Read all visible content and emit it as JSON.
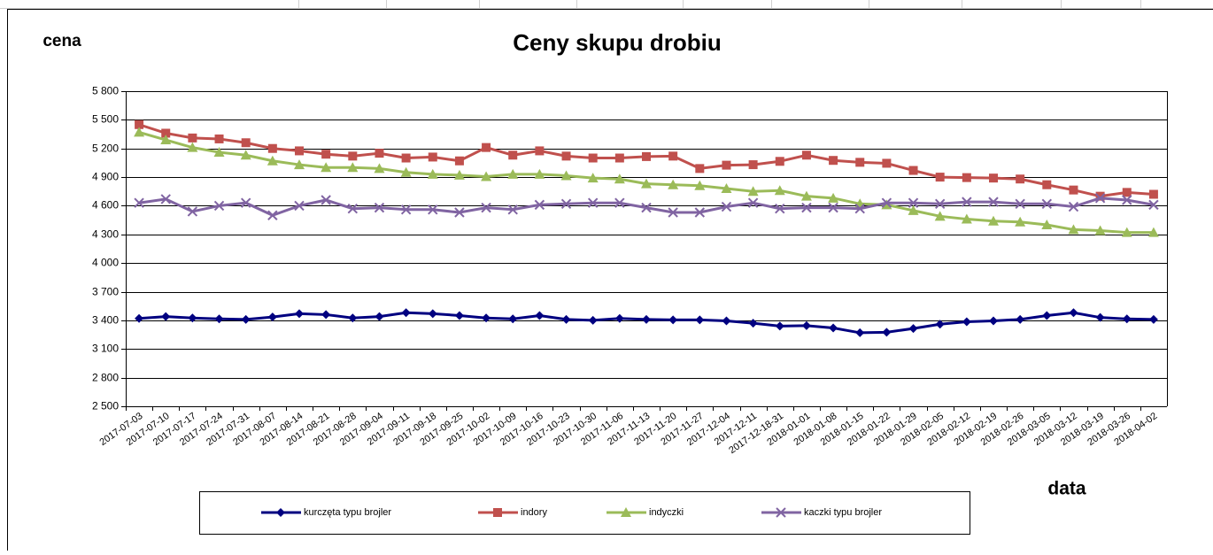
{
  "chart_data": {
    "type": "line",
    "title": "Ceny skupu drobiu",
    "y_label": "cena",
    "x_label": "data",
    "categories": [
      "2017-07-03",
      "2017-07-10",
      "2017-07-17",
      "2017-07-24",
      "2017-07-31",
      "2017-08-07",
      "2017-08-14",
      "2017-08-21",
      "2017-08-28",
      "2017-09-04",
      "2017-09-11",
      "2017-09-18",
      "2017-09-25",
      "2017-10-02",
      "2017-10-09",
      "2017-10-16",
      "2017-10-23",
      "2017-10-30",
      "2017-11-06",
      "2017-11-13",
      "2017-11-20",
      "2017-11-27",
      "2017-12-04",
      "2017-12-11",
      "2017-12-18-31",
      "2018-01-01",
      "2018-01-08",
      "2018-01-15",
      "2018-01-22",
      "2018-01-29",
      "2018-02-05",
      "2018-02-12",
      "2018-02-19",
      "2018-02-26",
      "2018-03-05",
      "2018-03-12",
      "2018-03-19",
      "2018-03-26",
      "2018-04-02"
    ],
    "series": [
      {
        "name": "kurczęta typu brojler",
        "color": "#000080",
        "marker": "diamond",
        "values": [
          3420,
          3440,
          3425,
          3415,
          3410,
          3435,
          3470,
          3460,
          3425,
          3440,
          3480,
          3470,
          3450,
          3425,
          3415,
          3450,
          3410,
          3400,
          3420,
          3410,
          3405,
          3405,
          3395,
          3370,
          3340,
          3345,
          3320,
          3270,
          3275,
          3315,
          3360,
          3385,
          3395,
          3410,
          3450,
          3480,
          3430,
          3415,
          3410
        ]
      },
      {
        "name": "indory",
        "color": "#c0504d",
        "marker": "square",
        "values": [
          5450,
          5360,
          5310,
          5300,
          5260,
          5200,
          5175,
          5140,
          5120,
          5150,
          5100,
          5110,
          5070,
          5210,
          5130,
          5175,
          5120,
          5100,
          5100,
          5115,
          5120,
          4990,
          5025,
          5030,
          5065,
          5130,
          5075,
          5055,
          5045,
          4970,
          4900,
          4895,
          4890,
          4880,
          4820,
          4765,
          4700,
          4740,
          4720
        ]
      },
      {
        "name": "indyczki",
        "color": "#9bbb59",
        "marker": "triangle",
        "values": [
          5370,
          5290,
          5210,
          5160,
          5130,
          5070,
          5030,
          5000,
          5000,
          4990,
          4950,
          4930,
          4920,
          4905,
          4930,
          4930,
          4915,
          4890,
          4880,
          4830,
          4820,
          4810,
          4780,
          4750,
          4760,
          4700,
          4680,
          4620,
          4610,
          4550,
          4490,
          4460,
          4440,
          4430,
          4400,
          4350,
          4340,
          4320,
          4320
        ]
      },
      {
        "name": "kaczki typu brojler",
        "color": "#8064a2",
        "marker": "x",
        "values": [
          4630,
          4670,
          4540,
          4600,
          4630,
          4500,
          4600,
          4660,
          4570,
          4580,
          4560,
          4560,
          4530,
          4580,
          4560,
          4610,
          4620,
          4630,
          4630,
          4580,
          4530,
          4530,
          4590,
          4630,
          4570,
          4580,
          4580,
          4570,
          4630,
          4630,
          4620,
          4640,
          4640,
          4620,
          4620,
          4590,
          4680,
          4660,
          4610
        ]
      }
    ],
    "ylim": [
      2500,
      5800
    ],
    "yticks": [
      {
        "value": 2500,
        "label": "2 500"
      },
      {
        "value": 2800,
        "label": "2 800"
      },
      {
        "value": 3100,
        "label": "3 100"
      },
      {
        "value": 3400,
        "label": "3 400"
      },
      {
        "value": 3700,
        "label": "3 700"
      },
      {
        "value": 4000,
        "label": "4 000"
      },
      {
        "value": 4300,
        "label": "4 300"
      },
      {
        "value": 4600,
        "label": "4 600"
      },
      {
        "value": 4900,
        "label": "4 900"
      },
      {
        "value": 5200,
        "label": "5 200"
      },
      {
        "value": 5500,
        "label": "5 500"
      },
      {
        "value": 5800,
        "label": "5 800"
      }
    ],
    "grid": true,
    "legend": "bottom"
  }
}
